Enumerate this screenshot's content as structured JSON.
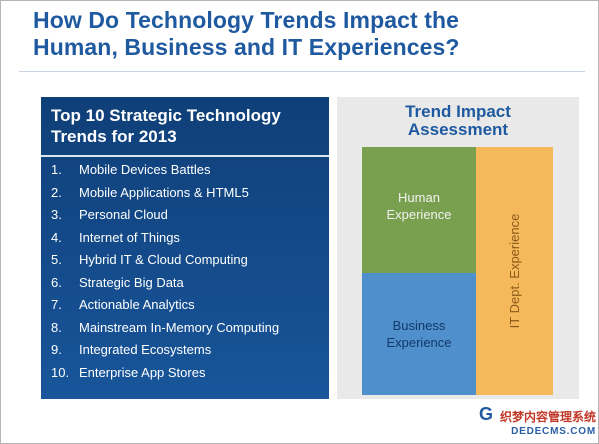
{
  "slide": {
    "title_line1": "How Do Technology Trends Impact the",
    "title_line2": "Human, Business and IT Experiences?"
  },
  "trends_panel": {
    "title_line1": "Top 10 Strategic Technology",
    "title_line2": "Trends for 2013",
    "items": [
      {
        "num": "1.",
        "label": "Mobile Devices Battles"
      },
      {
        "num": "2.",
        "label": "Mobile Applications & HTML5"
      },
      {
        "num": "3.",
        "label": "Personal Cloud"
      },
      {
        "num": "4.",
        "label": "Internet of Things"
      },
      {
        "num": "5.",
        "label": "Hybrid IT & Cloud Computing"
      },
      {
        "num": "6.",
        "label": "Strategic Big Data"
      },
      {
        "num": "7.",
        "label": "Actionable Analytics"
      },
      {
        "num": "8.",
        "label": "Mainstream In-Memory Computing"
      },
      {
        "num": "9.",
        "label": "Integrated Ecosystems"
      },
      {
        "num": "10.",
        "label": "Enterprise App Stores"
      }
    ]
  },
  "impact_panel": {
    "title_line1": "Trend Impact",
    "title_line2": "Assessment",
    "human_line1": "Human",
    "human_line2": "Experience",
    "business_line1": "Business",
    "business_line2": "Experience",
    "it_label": "IT Dept. Experience"
  },
  "footer": {
    "logo_letter": "G",
    "watermark_cn": "织梦内容管理系统",
    "watermark_url": "DEDECMS.COM"
  },
  "colors": {
    "title_blue": "#1f5aa0",
    "panel_blue": "#15508f",
    "human_green": "#79a04e",
    "business_blue": "#4f8fcb",
    "it_orange": "#f5b95c"
  }
}
